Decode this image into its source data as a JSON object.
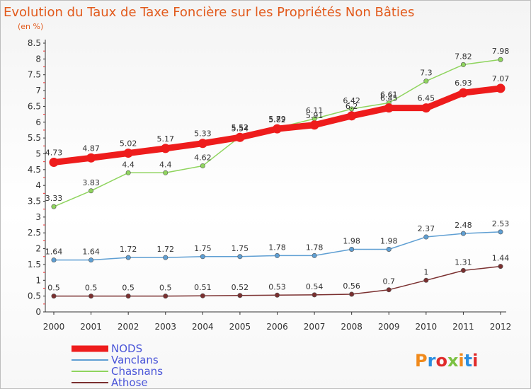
{
  "title": "Evolution du Taux de Taxe Foncière sur les Propriétés Non Bâties",
  "subtitle": "(en %)",
  "logo": {
    "text": "Proxiti",
    "colors": [
      "#f08a1c",
      "#2b8ee0",
      "#e02b2b",
      "#7bc142",
      "#f08a1c",
      "#2b8ee0",
      "#e02b2b"
    ]
  },
  "chart_data": {
    "type": "line",
    "x": [
      "2000",
      "2001",
      "2002",
      "2003",
      "2004",
      "2005",
      "2006",
      "2007",
      "2008",
      "2009",
      "2010",
      "2011",
      "2012"
    ],
    "ylim": [
      0,
      8.5
    ],
    "yticks": [
      "0",
      "0.5",
      "1",
      "1.5",
      "2",
      "2.5",
      "3",
      "3.5",
      "4",
      "4.5",
      "5",
      "5.5",
      "6",
      "6.5",
      "7",
      "7.5",
      "8",
      "8.5"
    ],
    "ylabel": "(en %)",
    "grid": false,
    "legend_position": "bottom-left",
    "series": [
      {
        "name": "Athose",
        "color": "#7a2f2f",
        "values": [
          0.5,
          0.5,
          0.5,
          0.5,
          0.51,
          0.52,
          0.53,
          0.54,
          0.56,
          0.7,
          1,
          1.31,
          1.44
        ],
        "labels": [
          "0.5",
          "0.5",
          "0.5",
          "0.5",
          "0.51",
          "0.52",
          "0.53",
          "0.54",
          "0.56",
          "0.7",
          "1",
          "1.31",
          "1.44"
        ]
      },
      {
        "name": "Vanclans",
        "color": "#5f9fd3",
        "values": [
          1.64,
          1.64,
          1.72,
          1.72,
          1.75,
          1.75,
          1.78,
          1.78,
          1.98,
          1.98,
          2.37,
          2.48,
          2.53
        ],
        "labels": [
          "1.64",
          "1.64",
          "1.72",
          "1.72",
          "1.75",
          "1.75",
          "1.78",
          "1.78",
          "1.98",
          "1.98",
          "2.37",
          "2.48",
          "2.53"
        ]
      },
      {
        "name": "Chasnans",
        "color": "#8fd45e",
        "values": [
          3.33,
          3.83,
          4.4,
          4.4,
          4.62,
          5.54,
          5.82,
          6.11,
          6.42,
          6.61,
          7.3,
          7.82,
          7.98
        ],
        "labels": [
          "3.33",
          "3.83",
          "4.4",
          "4.4",
          "4.62",
          "5.54",
          "5.82",
          "6.11",
          "6.42",
          "6.61",
          "7.3",
          "7.82",
          "7.98"
        ]
      },
      {
        "name": "NODS",
        "color": "#ee1c1c",
        "values": [
          4.73,
          4.87,
          5.02,
          5.17,
          5.33,
          5.52,
          5.79,
          5.91,
          6.2,
          6.45,
          6.45,
          6.93,
          7.07
        ],
        "labels": [
          "4.73",
          "4.87",
          "5.02",
          "5.17",
          "5.33",
          "5.52",
          "5.79",
          "5.91",
          "6.2",
          "6.45",
          "6.45",
          "6.93",
          "7.07"
        ]
      }
    ],
    "legend": [
      {
        "name": "NODS",
        "color": "#ee1c1c"
      },
      {
        "name": "Vanclans",
        "color": "#5f9fd3"
      },
      {
        "name": "Chasnans",
        "color": "#8fd45e"
      },
      {
        "name": "Athose",
        "color": "#7a2f2f"
      }
    ]
  }
}
